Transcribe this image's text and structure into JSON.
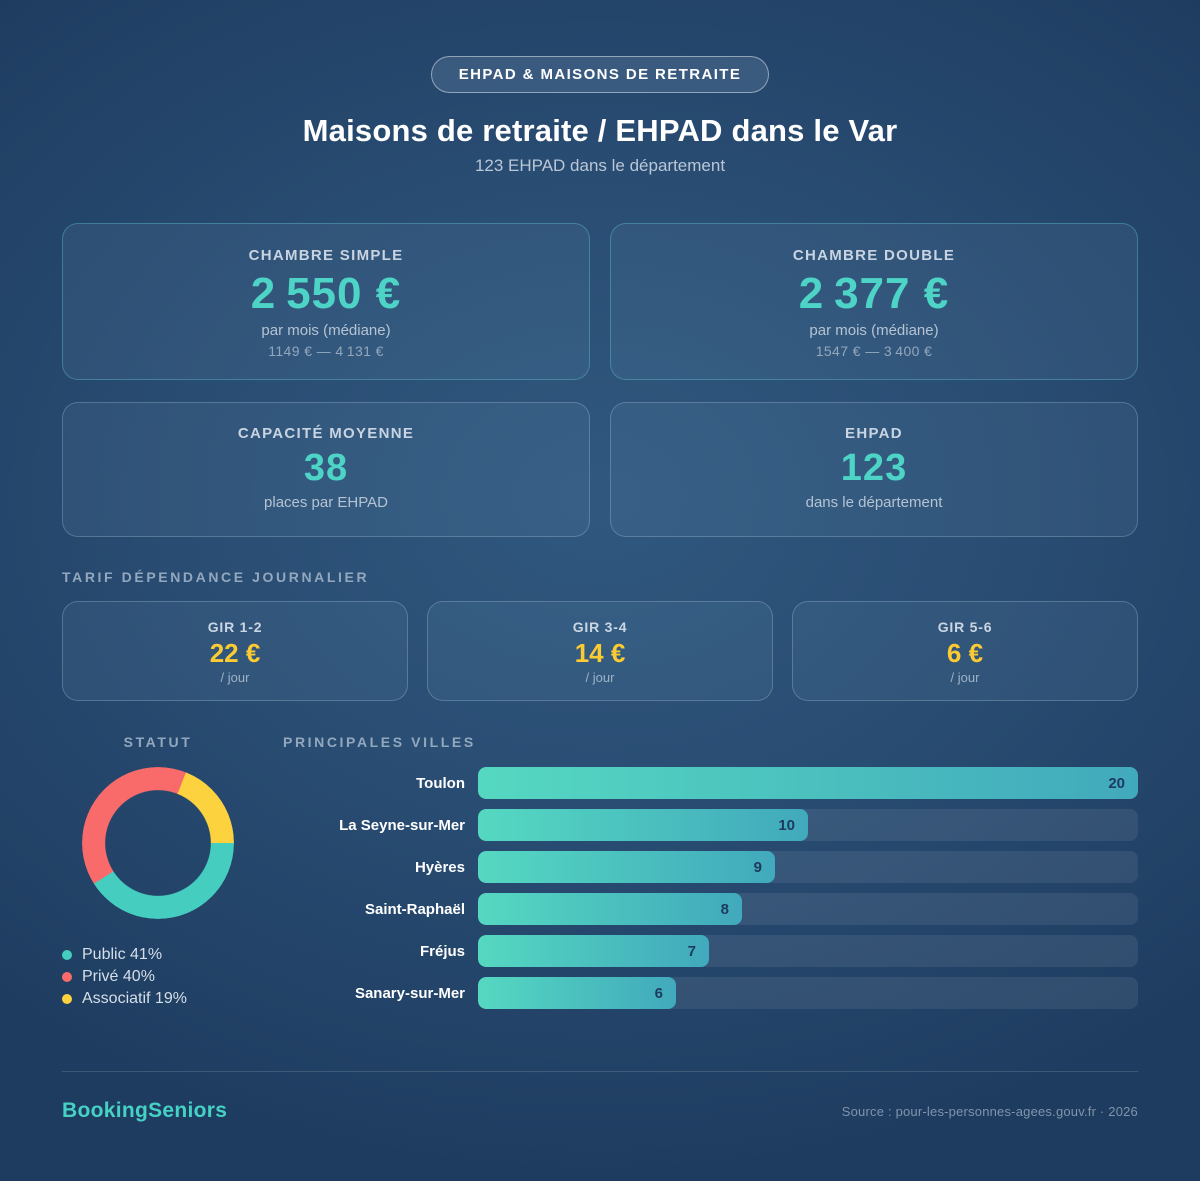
{
  "badge": "EHPAD & MAISONS DE RETRAITE",
  "title": "Maisons de retraite / EHPAD dans le Var",
  "subtitle": "123 EHPAD dans le département",
  "accent_colors": {
    "teal": "#4DD4C7",
    "yellow": "#FCCB32",
    "coral": "#F96B6B",
    "background_center": "#30587F",
    "background_edge": "#1E3C60"
  },
  "cards": [
    {
      "label": "CHAMBRE SIMPLE",
      "value": "2 550 €",
      "sub": "par mois (médiane)",
      "range": "1149 € — 4 131 €"
    },
    {
      "label": "CHAMBRE DOUBLE",
      "value": "2 377 €",
      "sub": "par mois (médiane)",
      "range": "1547 € — 3 400 €"
    },
    {
      "label": "CAPACITÉ MOYENNE",
      "value": "38",
      "sub": "places par EHPAD"
    },
    {
      "label": "EHPAD",
      "value": "123",
      "sub": "dans le département"
    }
  ],
  "tarif": {
    "section_title": "TARIF DÉPENDANCE JOURNALIER",
    "items": [
      {
        "label": "GIR 1-2",
        "value": "22 €",
        "per": "/ jour"
      },
      {
        "label": "GIR 3-4",
        "value": "14 €",
        "per": "/ jour"
      },
      {
        "label": "GIR 5-6",
        "value": "6 €",
        "per": "/ jour"
      }
    ]
  },
  "statut_heading": "STATUT",
  "villes_heading": "PRINCIPALES VILLES",
  "chart_data": [
    {
      "type": "pie",
      "donut": true,
      "title": "STATUT",
      "labels": [
        "Public",
        "Privé",
        "Associatif"
      ],
      "values": [
        41,
        40,
        19
      ],
      "colors": [
        "#45CDC0",
        "#F96B6B",
        "#FDD23F"
      ],
      "start_angle_deg": 90,
      "legend_position": "bottom-left",
      "legend_format": "{label} {value}%"
    },
    {
      "type": "bar",
      "orientation": "horizontal",
      "title": "PRINCIPALES VILLES",
      "categories": [
        "Toulon",
        "La Seyne-sur-Mer",
        "Hyères",
        "Saint-Raphaël",
        "Fréjus",
        "Sanary-sur-Mer"
      ],
      "values": [
        20,
        10,
        9,
        8,
        7,
        6
      ],
      "xlim": [
        0,
        20
      ],
      "bar_gradient": [
        "#55D8C1",
        "#41A9BC"
      ],
      "value_labels": "inside-end"
    }
  ],
  "footer": {
    "brand": "BookingSeniors",
    "source": "Source : pour-les-personnes-agees.gouv.fr · 2026"
  }
}
